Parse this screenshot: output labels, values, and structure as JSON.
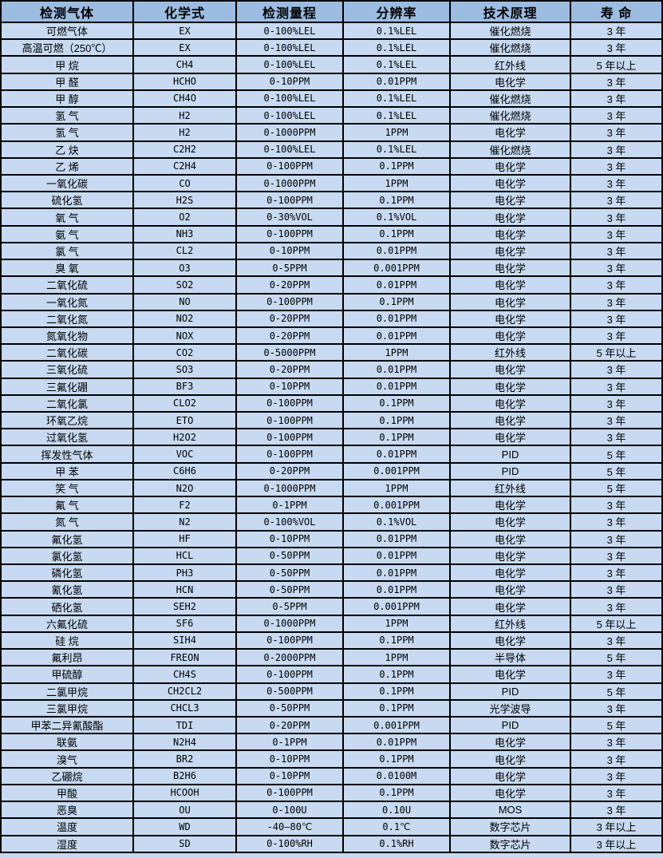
{
  "colors": {
    "header_bg": "#9cbce1",
    "row_bg": "#c7daf1",
    "border": "#000000",
    "text": "#000000"
  },
  "table": {
    "columns": [
      "检测气体",
      "化学式",
      "检测量程",
      "分辨率",
      "技术原理",
      "寿 命"
    ],
    "rows": [
      [
        "可燃气体",
        "EX",
        "0-100%LEL",
        "0.1%LEL",
        "催化燃烧",
        "3 年"
      ],
      [
        "高温可燃（250℃）",
        "EX",
        "0-100%LEL",
        "0.1%LEL",
        "催化燃烧",
        "3 年"
      ],
      [
        "甲 烷",
        "CH4",
        "0-100%LEL",
        "0.1%LEL",
        "红外线",
        "5 年以上"
      ],
      [
        "甲 醛",
        "HCHO",
        "0-10PPM",
        "0.01PPM",
        "电化学",
        "3 年"
      ],
      [
        "甲 醇",
        "CH4O",
        "0-100%LEL",
        "0.1%LEL",
        "催化燃烧",
        "3 年"
      ],
      [
        "氢 气",
        "H2",
        "0-100%LEL",
        "0.1%LEL",
        "催化燃烧",
        "3 年"
      ],
      [
        "氢 气",
        "H2",
        "0-1000PPM",
        "1PPM",
        "电化学",
        "3 年"
      ],
      [
        "乙 炔",
        "C2H2",
        "0-100%LEL",
        "0.1%LEL",
        "催化燃烧",
        "3 年"
      ],
      [
        "乙 烯",
        "C2H4",
        "0-100PPM",
        "0.1PPM",
        "电化学",
        "3 年"
      ],
      [
        "一氧化碳",
        "CO",
        "0-1000PPM",
        "1PPM",
        "电化学",
        "3 年"
      ],
      [
        "硫化氢",
        "H2S",
        "0-100PPM",
        "0.1PPM",
        "电化学",
        "3 年"
      ],
      [
        "氧 气",
        "O2",
        "0-30%VOL",
        "0.1%VOL",
        "电化学",
        "3 年"
      ],
      [
        "氨 气",
        "NH3",
        "0-100PPM",
        "0.1PPM",
        "电化学",
        "3 年"
      ],
      [
        "氯 气",
        "CL2",
        "0-10PPM",
        "0.01PPM",
        "电化学",
        "3 年"
      ],
      [
        "臭 氧",
        "O3",
        "0-5PPM",
        "0.001PPM",
        "电化学",
        "3 年"
      ],
      [
        "二氧化硫",
        "SO2",
        "0-20PPM",
        "0.01PPM",
        "电化学",
        "3 年"
      ],
      [
        "一氧化氮",
        "NO",
        "0-100PPM",
        "0.1PPM",
        "电化学",
        "3 年"
      ],
      [
        "二氧化氮",
        "NO2",
        "0-20PPM",
        "0.01PPM",
        "电化学",
        "3 年"
      ],
      [
        "氮氧化物",
        "NOX",
        "0-20PPM",
        "0.01PPM",
        "电化学",
        "3 年"
      ],
      [
        "二氧化碳",
        "CO2",
        "0-5000PPM",
        "1PPM",
        "红外线",
        "5 年以上"
      ],
      [
        "三氧化硫",
        "SO3",
        "0-20PPM",
        "0.01PPM",
        "电化学",
        "3 年"
      ],
      [
        "三氟化硼",
        "BF3",
        "0-10PPM",
        "0.01PPM",
        "电化学",
        "3 年"
      ],
      [
        "二氧化氯",
        "CLO2",
        "0-100PPM",
        "0.1PPM",
        "电化学",
        "3 年"
      ],
      [
        "环氧乙烷",
        "ETO",
        "0-100PPM",
        "0.1PPM",
        "电化学",
        "3 年"
      ],
      [
        "过氧化氢",
        "H2O2",
        "0-100PPM",
        "0.1PPM",
        "电化学",
        "3 年"
      ],
      [
        "挥发性气体",
        "VOC",
        "0-100PPM",
        "0.01PPM",
        "PID",
        "5 年"
      ],
      [
        "甲 苯",
        "C6H6",
        "0-20PPM",
        "0.001PPM",
        "PID",
        "5 年"
      ],
      [
        "笑 气",
        "N2O",
        "0-1000PPM",
        "1PPM",
        "红外线",
        "5 年"
      ],
      [
        "氟 气",
        "F2",
        "0-1PPM",
        "0.001PPM",
        "电化学",
        "3 年"
      ],
      [
        "氮 气",
        "N2",
        "0-100%VOL",
        "0.1%VOL",
        "电化学",
        "3 年"
      ],
      [
        "氟化氢",
        "HF",
        "0-10PPM",
        "0.01PPM",
        "电化学",
        "3 年"
      ],
      [
        "氯化氢",
        "HCL",
        "0-50PPM",
        "0.01PPM",
        "电化学",
        "3 年"
      ],
      [
        "磷化氢",
        "PH3",
        "0-50PPM",
        "0.01PPM",
        "电化学",
        "3 年"
      ],
      [
        "氰化氢",
        "HCN",
        "0-50PPM",
        "0.01PPM",
        "电化学",
        "3 年"
      ],
      [
        "硒化氢",
        "SEH2",
        "0-5PPM",
        "0.001PPM",
        "电化学",
        "3 年"
      ],
      [
        "六氟化硫",
        "SF6",
        "0-1000PPM",
        "1PPM",
        "红外线",
        "5 年以上"
      ],
      [
        "硅 烷",
        "SIH4",
        "0-100PPM",
        "0.1PPM",
        "电化学",
        "3 年"
      ],
      [
        "氟利昂",
        "FREON",
        "0-2000PPM",
        "1PPM",
        "半导体",
        "5 年"
      ],
      [
        "甲硫醇",
        "CH4S",
        "0-100PPM",
        "0.1PPM",
        "电化学",
        "3 年"
      ],
      [
        "二氯甲烷",
        "CH2CL2",
        "0-500PPM",
        "0.1PPM",
        "PID",
        "5 年"
      ],
      [
        "三氯甲烷",
        "CHCL3",
        "0-50PPM",
        "0.1PPM",
        "光学波导",
        "3 年"
      ],
      [
        "甲苯二异氰酸酯",
        "TDI",
        "0-20PPM",
        "0.001PPM",
        "PID",
        "5 年"
      ],
      [
        "联氨",
        "N2H4",
        "0-1PPM",
        "0.01PPM",
        "电化学",
        "3 年"
      ],
      [
        "溴气",
        "BR2",
        "0-10PPM",
        "0.1PPM",
        "电化学",
        "3 年"
      ],
      [
        "乙硼烷",
        "B2H6",
        "0-10PPM",
        "0.0100M",
        "电化学",
        "3 年"
      ],
      [
        "甲酸",
        "HCOOH",
        "0-100PPM",
        "0.1PPM",
        "电化学",
        "3 年"
      ],
      [
        "恶臭",
        "OU",
        "0-100U",
        "0.10U",
        "MOS",
        "3 年"
      ],
      [
        "温度",
        "WD",
        "-40—80℃",
        "0.1℃",
        "数字芯片",
        "3 年以上"
      ],
      [
        "湿度",
        "SD",
        "0-100%RH",
        "0.1%RH",
        "数字芯片",
        "3 年以上"
      ]
    ]
  }
}
